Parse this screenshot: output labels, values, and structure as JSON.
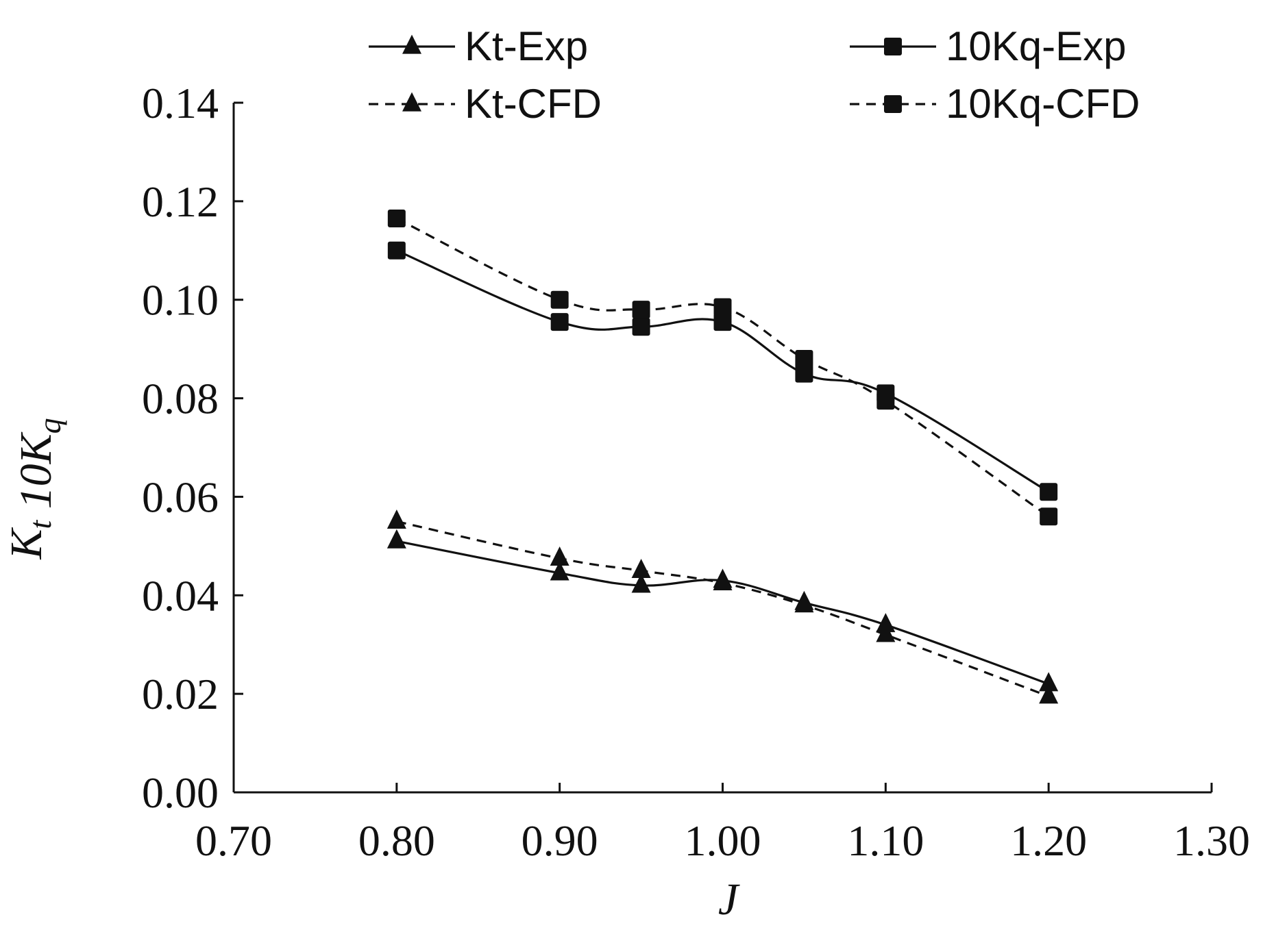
{
  "chart_data": {
    "type": "line",
    "title": "",
    "xlabel": "J",
    "ylabel": {
      "parts": [
        {
          "text": "K",
          "sub": "t"
        },
        {
          "text": " 10K",
          "sub": "q"
        }
      ]
    },
    "xlim": [
      0.7,
      1.3
    ],
    "ylim": [
      0.0,
      0.14
    ],
    "xticks": [
      "0.70",
      "0.80",
      "0.90",
      "1.00",
      "1.10",
      "1.20",
      "1.30"
    ],
    "yticks": [
      "0.00",
      "0.02",
      "0.04",
      "0.06",
      "0.08",
      "0.10",
      "0.12",
      "0.14"
    ],
    "grid": false,
    "legend_position": "top",
    "x": [
      0.8,
      0.9,
      0.95,
      1.0,
      1.05,
      1.1,
      1.2
    ],
    "series": [
      {
        "name": "Kt-Exp",
        "marker": "triangle",
        "line": "solid",
        "values": [
          0.051,
          0.0445,
          0.042,
          0.043,
          0.0385,
          0.034,
          0.022
        ]
      },
      {
        "name": "Kt-CFD",
        "marker": "triangle",
        "line": "dashed",
        "values": [
          0.055,
          0.0475,
          0.045,
          0.0425,
          0.038,
          0.032,
          0.0195
        ]
      },
      {
        "name": "10Kq-Exp",
        "marker": "square",
        "line": "solid",
        "values": [
          0.11,
          0.0955,
          0.0945,
          0.0955,
          0.085,
          0.081,
          0.061
        ]
      },
      {
        "name": "10Kq-CFD",
        "marker": "square",
        "line": "dashed",
        "values": [
          0.1165,
          0.1,
          0.098,
          0.0985,
          0.088,
          0.0795,
          0.056
        ]
      }
    ],
    "color": "#111111"
  }
}
